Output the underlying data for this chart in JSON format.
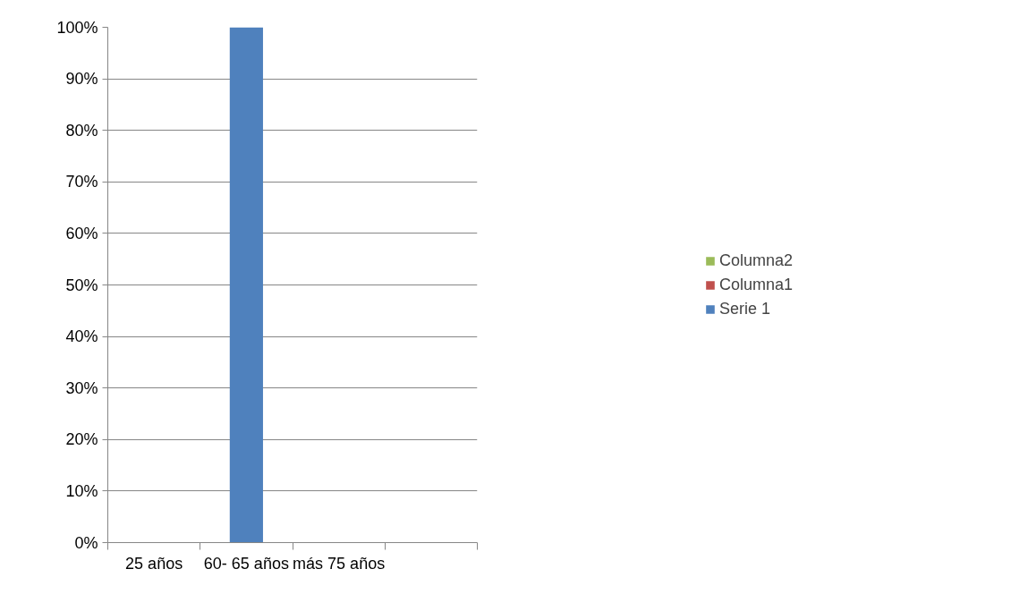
{
  "chart_data": {
    "type": "bar",
    "stacked": true,
    "categories": [
      "25 años",
      "60- 65 años",
      "más 75 años",
      null
    ],
    "series": [
      {
        "name": "Serie 1",
        "color": "#4f81bd",
        "values": [
          0,
          100,
          0,
          0
        ]
      },
      {
        "name": "Columna1",
        "color": "#c0504d",
        "values": [
          0,
          0,
          0,
          0
        ]
      },
      {
        "name": "Columna2",
        "color": "#9bbb59",
        "values": [
          0,
          0,
          0,
          0
        ]
      }
    ],
    "ylim": [
      0,
      100
    ],
    "yticks": [
      {
        "value": 0,
        "label": "0%"
      },
      {
        "value": 10,
        "label": "10%"
      },
      {
        "value": 20,
        "label": "20%"
      },
      {
        "value": 30,
        "label": "30%"
      },
      {
        "value": 40,
        "label": "40%"
      },
      {
        "value": 50,
        "label": "50%"
      },
      {
        "value": 60,
        "label": "60%"
      },
      {
        "value": 70,
        "label": "70%"
      },
      {
        "value": 80,
        "label": "80%"
      },
      {
        "value": 90,
        "label": "90%"
      },
      {
        "value": 100,
        "label": "100%"
      }
    ],
    "grid": "y",
    "legend": "right"
  }
}
